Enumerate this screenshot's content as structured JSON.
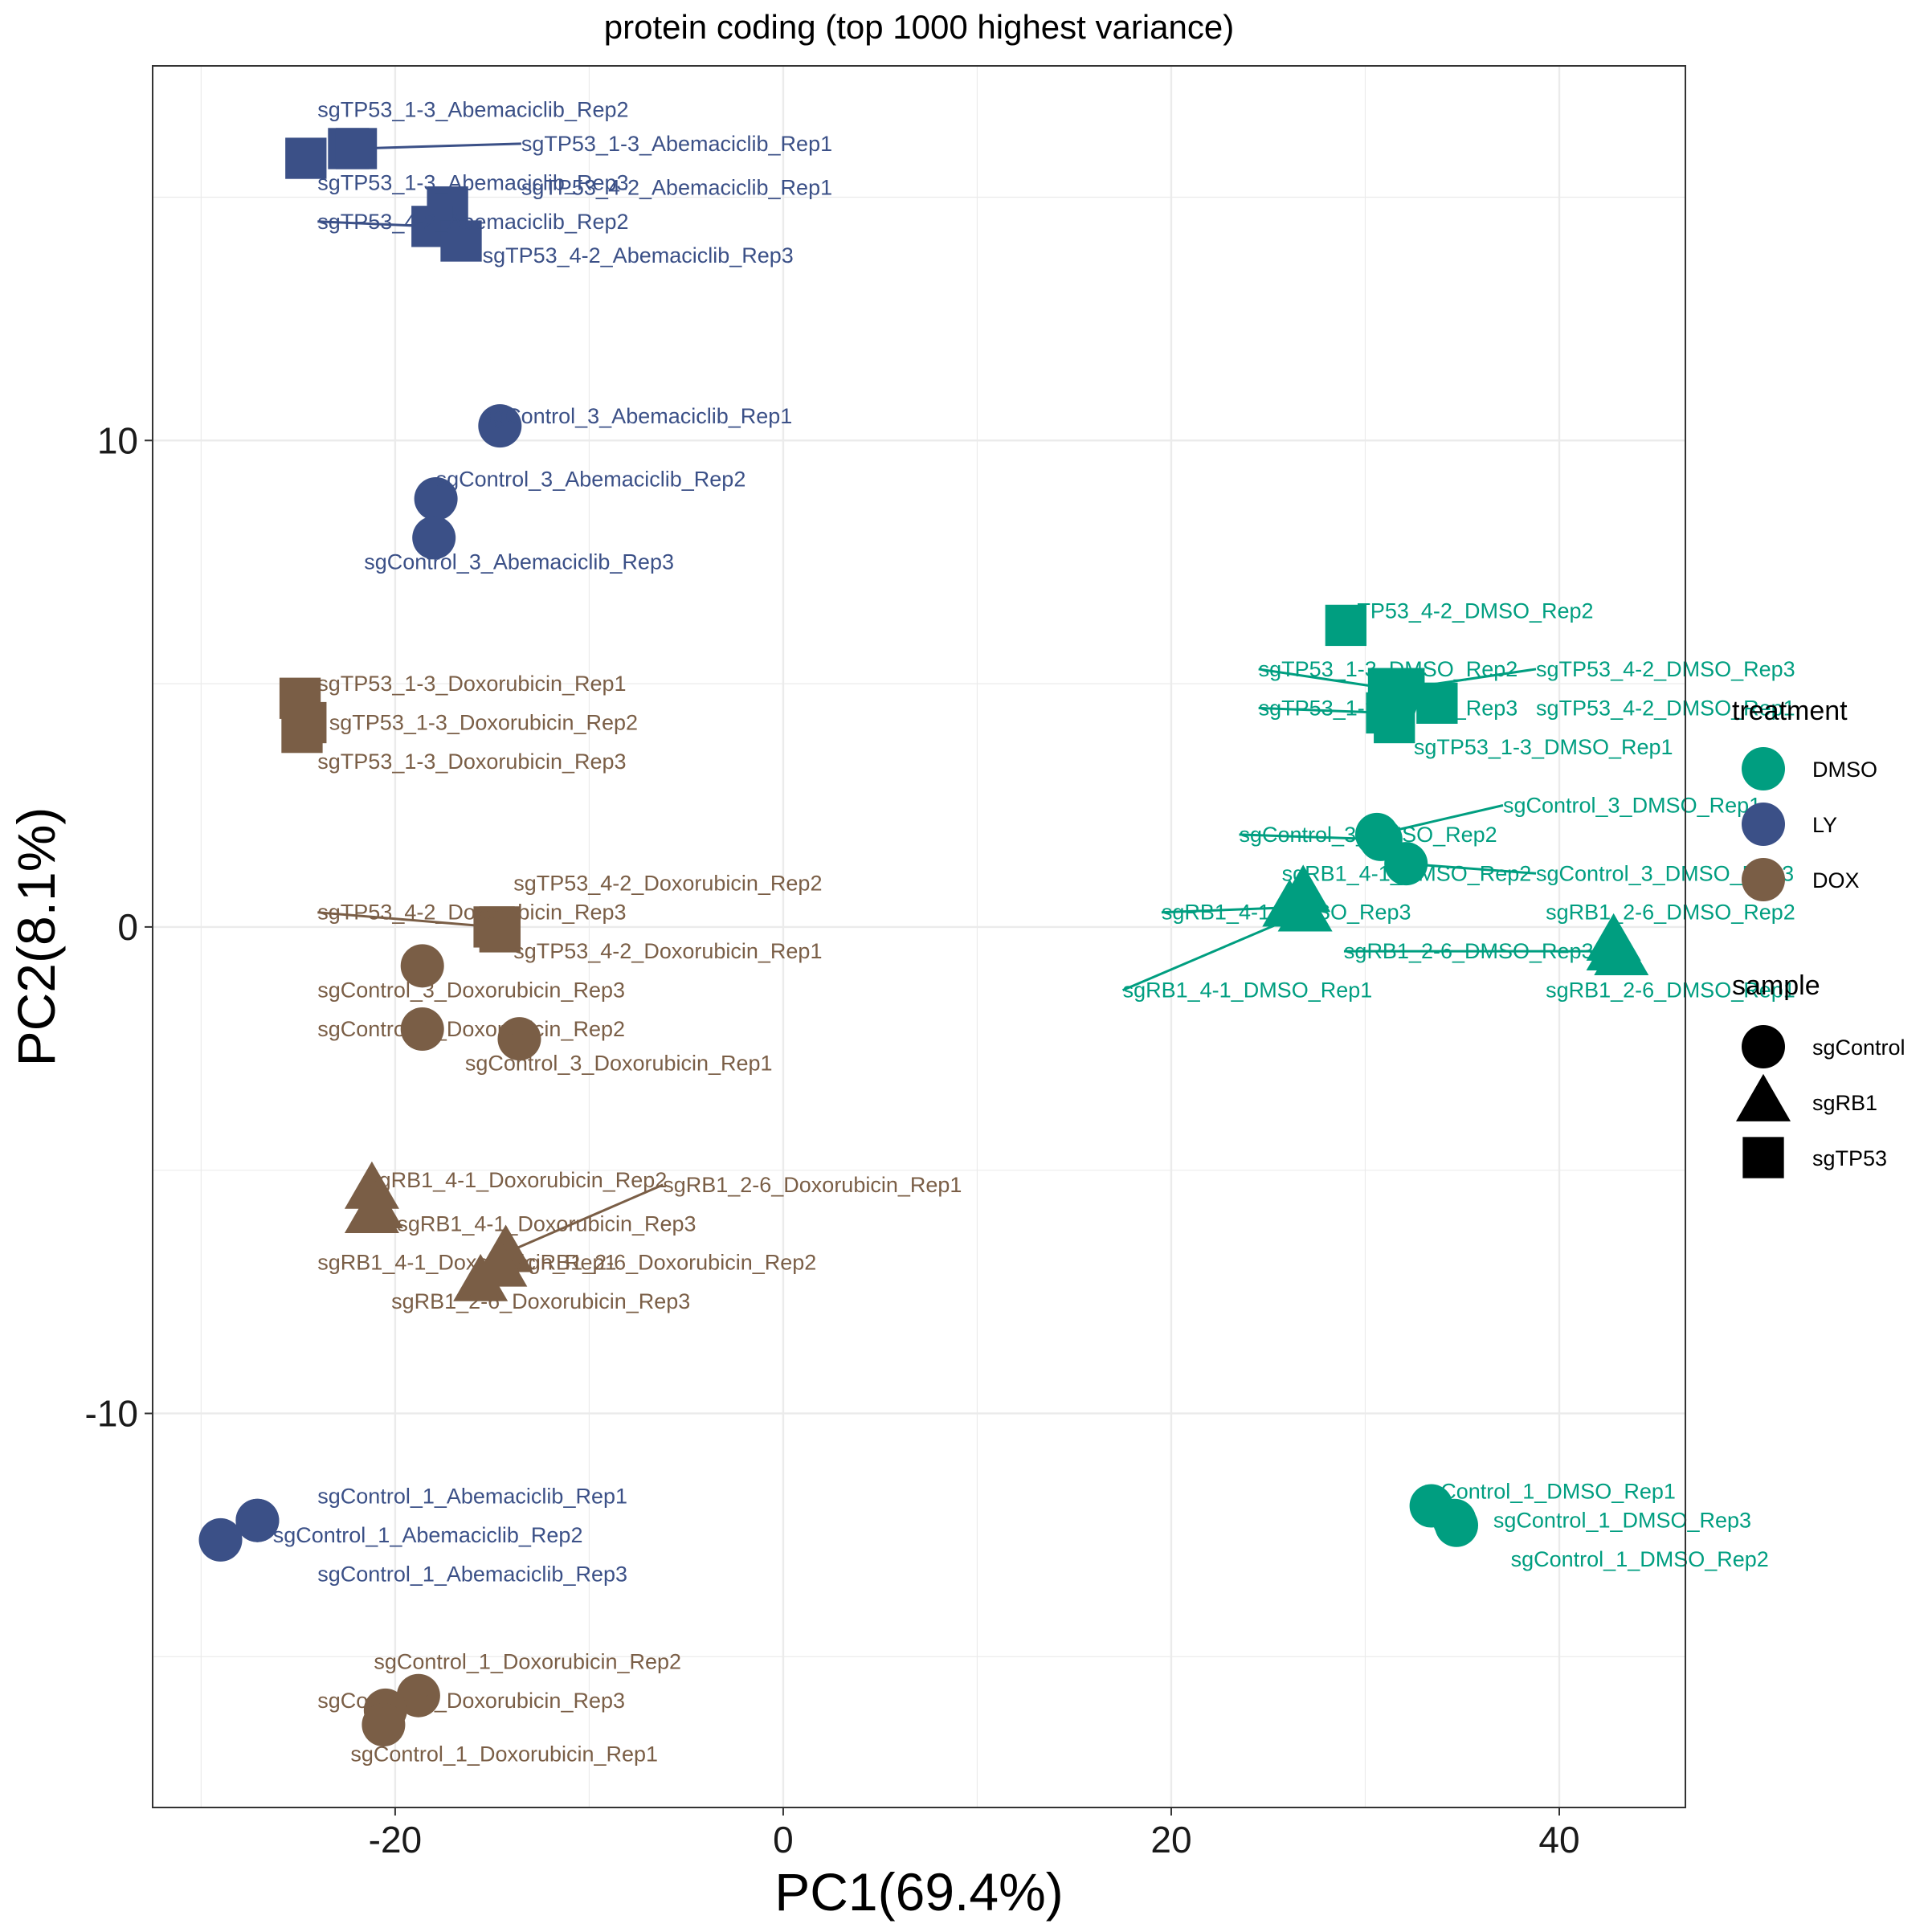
{
  "chart_data": {
    "type": "scatter",
    "title": "protein coding (top 1000 highest variance)",
    "xlabel": "PC1(69.4%)",
    "ylabel": "PC2(8.1%)",
    "xlim": [
      -32.5,
      46.5
    ],
    "ylim": [
      -18.1,
      17.7
    ],
    "x_ticks": [
      -20,
      0,
      20,
      40
    ],
    "y_ticks": [
      -10,
      0,
      10
    ],
    "x_tick_labels": [
      "-20",
      "0",
      "20",
      "40"
    ],
    "y_tick_labels": [
      "-10",
      "0",
      "10"
    ],
    "grid": true,
    "colors": {
      "DMSO": "#009E80",
      "LY": "#3B5087",
      "DOX": "#7A5E46"
    },
    "legend": {
      "placement": "right",
      "treatment_title": "treatment",
      "treatment_items": [
        "DMSO",
        "LY",
        "DOX"
      ],
      "sample_title": "sample",
      "sample_items": [
        {
          "label": "sgControl",
          "shape": "circle"
        },
        {
          "label": "sgRB1",
          "shape": "triangle"
        },
        {
          "label": "sgTP53",
          "shape": "square"
        }
      ]
    },
    "points": [
      {
        "name": "sgTP53_1-3_Abemaciclib_Rep2",
        "treatment": "LY",
        "sample": "sgTP53",
        "x": -22.4,
        "y": 16.0,
        "lx": -24.0,
        "ly": 16.8
      },
      {
        "name": "sgTP53_1-3_Abemaciclib_Rep1",
        "treatment": "LY",
        "sample": "sgTP53",
        "x": -22.0,
        "y": 16.0,
        "lx": -13.5,
        "ly": 16.1
      },
      {
        "name": "sgTP53_1-3_Abemaciclib_Rep3",
        "treatment": "LY",
        "sample": "sgTP53",
        "x": -24.6,
        "y": 15.8,
        "lx": -24.0,
        "ly": 15.3
      },
      {
        "name": "sgTP53_4-2_Abemaciclib_Rep1",
        "treatment": "LY",
        "sample": "sgTP53",
        "x": -17.3,
        "y": 14.8,
        "lx": -13.5,
        "ly": 15.2
      },
      {
        "name": "sgTP53_4-2_Abemaciclib_Rep2",
        "treatment": "LY",
        "sample": "sgTP53",
        "x": -18.1,
        "y": 14.4,
        "lx": -24.0,
        "ly": 14.5
      },
      {
        "name": "sgTP53_4-2_Abemaciclib_Rep3",
        "treatment": "LY",
        "sample": "sgTP53",
        "x": -16.6,
        "y": 14.1,
        "lx": -15.5,
        "ly": 13.8
      },
      {
        "name": "sgControl_3_Abemaciclib_Rep1",
        "treatment": "LY",
        "sample": "sgControl",
        "x": -14.6,
        "y": 10.3,
        "lx": -15.5,
        "ly": 10.5
      },
      {
        "name": "sgControl_3_Abemaciclib_Rep2",
        "treatment": "LY",
        "sample": "sgControl",
        "x": -17.9,
        "y": 8.8,
        "lx": -17.9,
        "ly": 9.2
      },
      {
        "name": "sgControl_3_Abemaciclib_Rep3",
        "treatment": "LY",
        "sample": "sgControl",
        "x": -18.0,
        "y": 8.0,
        "lx": -21.6,
        "ly": 7.5
      },
      {
        "name": "sgTP53_1-3_Doxorubicin_Rep1",
        "treatment": "DOX",
        "sample": "sgTP53",
        "x": -24.9,
        "y": 4.7,
        "lx": -24.0,
        "ly": 5.0
      },
      {
        "name": "sgTP53_1-3_Doxorubicin_Rep2",
        "treatment": "DOX",
        "sample": "sgTP53",
        "x": -24.6,
        "y": 4.2,
        "lx": -23.4,
        "ly": 4.2
      },
      {
        "name": "sgTP53_1-3_Doxorubicin_Rep3",
        "treatment": "DOX",
        "sample": "sgTP53",
        "x": -24.8,
        "y": 4.0,
        "lx": -24.0,
        "ly": 3.4
      },
      {
        "name": "sgTP53_4-2_Doxorubicin_Rep2",
        "treatment": "DOX",
        "sample": "sgTP53",
        "x": -14.6,
        "y": 0.0,
        "lx": -13.9,
        "ly": 0.9
      },
      {
        "name": "sgTP53_4-2_Doxorubicin_Rep3",
        "treatment": "DOX",
        "sample": "sgTP53",
        "x": -14.9,
        "y": 0.0,
        "lx": -24.0,
        "ly": 0.3
      },
      {
        "name": "sgTP53_4-2_Doxorubicin_Rep1",
        "treatment": "DOX",
        "sample": "sgTP53",
        "x": -14.6,
        "y": -0.1,
        "lx": -13.9,
        "ly": -0.5
      },
      {
        "name": "sgControl_3_Doxorubicin_Rep3",
        "treatment": "DOX",
        "sample": "sgControl",
        "x": -18.6,
        "y": -0.8,
        "lx": -24.0,
        "ly": -1.3
      },
      {
        "name": "sgControl_3_Doxorubicin_Rep2",
        "treatment": "DOX",
        "sample": "sgControl",
        "x": -18.6,
        "y": -2.1,
        "lx": -24.0,
        "ly": -2.1
      },
      {
        "name": "sgControl_3_Doxorubicin_Rep1",
        "treatment": "DOX",
        "sample": "sgControl",
        "x": -13.6,
        "y": -2.3,
        "lx": -16.4,
        "ly": -2.8
      },
      {
        "name": "sgRB1_4-1_Doxorubicin_Rep2",
        "treatment": "DOX",
        "sample": "sgRB1",
        "x": -21.2,
        "y": -5.4,
        "lx": -21.4,
        "ly": -5.2
      },
      {
        "name": "sgRB1_2-6_Doxorubicin_Rep1",
        "treatment": "DOX",
        "sample": "sgRB1",
        "x": -14.3,
        "y": -6.7,
        "lx": -6.2,
        "ly": -5.3
      },
      {
        "name": "sgRB1_4-1_Doxorubicin_Rep3",
        "treatment": "DOX",
        "sample": "sgRB1",
        "x": -21.0,
        "y": -5.8,
        "lx": -19.9,
        "ly": -6.1
      },
      {
        "name": "sgRB1_4-1_Doxorubicin_Rep1",
        "treatment": "DOX",
        "sample": "sgRB1",
        "x": -21.2,
        "y": -5.9,
        "lx": -24.0,
        "ly": -6.9
      },
      {
        "name": "sgRB1_2-6_Doxorubicin_Rep2",
        "treatment": "DOX",
        "sample": "sgRB1",
        "x": -14.6,
        "y": -7.0,
        "lx": -13.7,
        "ly": -6.9
      },
      {
        "name": "sgRB1_2-6_Doxorubicin_Rep3",
        "treatment": "DOX",
        "sample": "sgRB1",
        "x": -15.6,
        "y": -7.3,
        "lx": -20.2,
        "ly": -7.7
      },
      {
        "name": "sgControl_1_Abemaciclib_Rep1",
        "treatment": "LY",
        "sample": "sgControl",
        "x": -27.1,
        "y": -12.2,
        "lx": -24.0,
        "ly": -11.7
      },
      {
        "name": "sgControl_1_Abemaciclib_Rep2",
        "treatment": "LY",
        "sample": "sgControl",
        "x": -27.1,
        "y": -12.2,
        "lx": -26.3,
        "ly": -12.5
      },
      {
        "name": "sgControl_1_Abemaciclib_Rep3",
        "treatment": "LY",
        "sample": "sgControl",
        "x": -29.0,
        "y": -12.6,
        "lx": -24.0,
        "ly": -13.3
      },
      {
        "name": "sgControl_1_Doxorubicin_Rep2",
        "treatment": "DOX",
        "sample": "sgControl",
        "x": -18.8,
        "y": -15.8,
        "lx": -21.1,
        "ly": -15.1
      },
      {
        "name": "sgControl_1_Doxorubicin_Rep3",
        "treatment": "DOX",
        "sample": "sgControl",
        "x": -20.5,
        "y": -16.1,
        "lx": -24.0,
        "ly": -15.9
      },
      {
        "name": "sgControl_1_Doxorubicin_Rep1",
        "treatment": "DOX",
        "sample": "sgControl",
        "x": -20.6,
        "y": -16.4,
        "lx": -22.3,
        "ly": -17.0
      },
      {
        "name": "sgTP53_4-2_DMSO_Rep2",
        "treatment": "DMSO",
        "sample": "sgTP53",
        "x": 29.0,
        "y": 6.2,
        "lx": 28.4,
        "ly": 6.5
      },
      {
        "name": "sgTP53_1-3_DMSO_Rep2",
        "treatment": "DMSO",
        "sample": "sgTP53",
        "x": 31.2,
        "y": 4.9,
        "lx": 24.5,
        "ly": 5.3
      },
      {
        "name": "sgTP53_4-2_DMSO_Rep3",
        "treatment": "DMSO",
        "sample": "sgTP53",
        "x": 32.0,
        "y": 4.9,
        "lx": 38.8,
        "ly": 5.3
      },
      {
        "name": "sgTP53_1-3_DMSO_Rep3",
        "treatment": "DMSO",
        "sample": "sgTP53",
        "x": 31.1,
        "y": 4.4,
        "lx": 24.5,
        "ly": 4.5
      },
      {
        "name": "sgTP53_4-2_DMSO_Rep1",
        "treatment": "DMSO",
        "sample": "sgTP53",
        "x": 33.7,
        "y": 4.6,
        "lx": 38.8,
        "ly": 4.5
      },
      {
        "name": "sgTP53_1-3_DMSO_Rep1",
        "treatment": "DMSO",
        "sample": "sgTP53",
        "x": 31.5,
        "y": 4.2,
        "lx": 32.5,
        "ly": 3.7
      },
      {
        "name": "sgControl_3_DMSO_Rep1",
        "treatment": "DMSO",
        "sample": "sgControl",
        "x": 30.6,
        "y": 1.9,
        "lx": 37.1,
        "ly": 2.5
      },
      {
        "name": "sgControl_3_DMSO_Rep2",
        "treatment": "DMSO",
        "sample": "sgControl",
        "x": 30.8,
        "y": 1.8,
        "lx": 23.5,
        "ly": 1.9
      },
      {
        "name": "sgControl_3_DMSO_Rep3",
        "treatment": "DMSO",
        "sample": "sgControl",
        "x": 32.1,
        "y": 1.3,
        "lx": 38.8,
        "ly": 1.1
      },
      {
        "name": "sgRB1_4-1_DMSO_Rep2",
        "treatment": "DMSO",
        "sample": "sgRB1",
        "x": 26.8,
        "y": 0.7,
        "lx": 25.7,
        "ly": 1.1
      },
      {
        "name": "sgRB1_4-1_DMSO_Rep3",
        "treatment": "DMSO",
        "sample": "sgRB1",
        "x": 26.1,
        "y": 0.4,
        "lx": 19.5,
        "ly": 0.3
      },
      {
        "name": "sgRB1_2-6_DMSO_Rep2",
        "treatment": "DMSO",
        "sample": "sgRB1",
        "x": 42.8,
        "y": -0.3,
        "lx": 39.3,
        "ly": 0.3
      },
      {
        "name": "sgRB1_2-6_DMSO_Rep3",
        "treatment": "DMSO",
        "sample": "sgRB1",
        "x": 42.8,
        "y": -0.5,
        "lx": 28.9,
        "ly": -0.5
      },
      {
        "name": "sgRB1_2-6_DMSO_Rep1",
        "treatment": "DMSO",
        "sample": "sgRB1",
        "x": 43.2,
        "y": -0.6,
        "lx": 39.3,
        "ly": -1.3
      },
      {
        "name": "sgRB1_4-1_DMSO_Rep1",
        "treatment": "DMSO",
        "sample": "sgRB1",
        "x": 26.9,
        "y": 0.3,
        "lx": 17.5,
        "ly": -1.3
      },
      {
        "name": "sgControl_1_DMSO_Rep1",
        "treatment": "DMSO",
        "sample": "sgControl",
        "x": 33.4,
        "y": -11.9,
        "lx": 32.7,
        "ly": -11.6
      },
      {
        "name": "sgControl_1_DMSO_Rep3",
        "treatment": "DMSO",
        "sample": "sgControl",
        "x": 34.6,
        "y": -12.2,
        "lx": 36.6,
        "ly": -12.2
      },
      {
        "name": "sgControl_1_DMSO_Rep2",
        "treatment": "DMSO",
        "sample": "sgControl",
        "x": 34.7,
        "y": -12.3,
        "lx": 37.5,
        "ly": -13.0
      }
    ]
  }
}
